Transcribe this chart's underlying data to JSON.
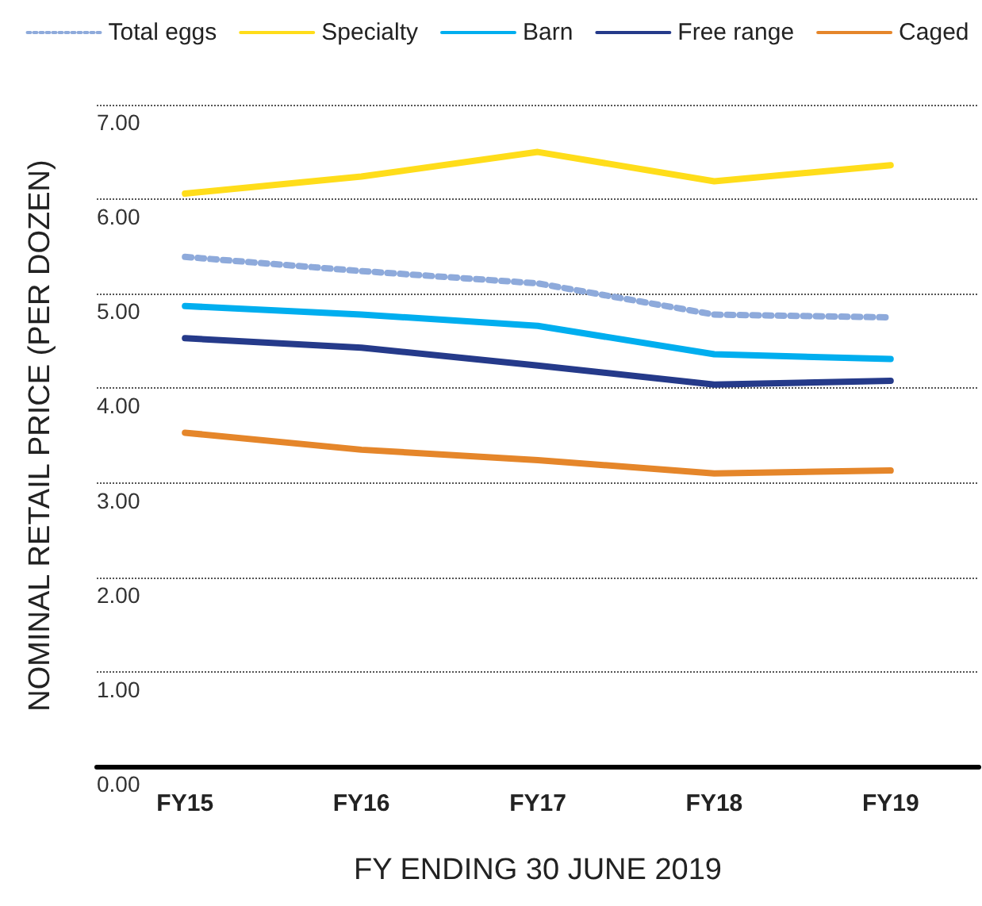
{
  "chart_data": {
    "type": "line",
    "xlabel": "FY ENDING 30 JUNE 2019",
    "ylabel": "NOMINAL RETAIL PRICE (PER DOZEN)",
    "categories": [
      "FY15",
      "FY16",
      "FY17",
      "FY18",
      "FY19"
    ],
    "series": [
      {
        "name": "Total eggs",
        "color": "#8eaadb",
        "line_style": "dotted",
        "values": [
          5.39,
          5.24,
          5.11,
          4.78,
          4.75
        ]
      },
      {
        "name": "Specialty",
        "color": "#ffdd1a",
        "values": [
          6.06,
          6.24,
          6.5,
          6.19,
          6.36
        ]
      },
      {
        "name": "Barn",
        "color": "#00aeef",
        "values": [
          4.87,
          4.78,
          4.66,
          4.36,
          4.31
        ]
      },
      {
        "name": "Free range",
        "color": "#253a8a",
        "values": [
          4.53,
          4.43,
          4.24,
          4.04,
          4.08
        ]
      },
      {
        "name": "Caged",
        "color": "#e5862a",
        "values": [
          3.53,
          3.35,
          3.24,
          3.1,
          3.13
        ]
      }
    ],
    "ylim": [
      0,
      7
    ],
    "yticks": [
      {
        "value": 0,
        "label": "0.00"
      },
      {
        "value": 1,
        "label": "1.00"
      },
      {
        "value": 2,
        "label": "2.00"
      },
      {
        "value": 3,
        "label": "3.00"
      },
      {
        "value": 4,
        "label": "4.00"
      },
      {
        "value": 5,
        "label": "5.00"
      },
      {
        "value": 6,
        "label": "6.00"
      },
      {
        "value": 7,
        "label": "7.00"
      }
    ],
    "grid": "y",
    "legend": "top",
    "marker": "none",
    "line_style": "solid"
  }
}
